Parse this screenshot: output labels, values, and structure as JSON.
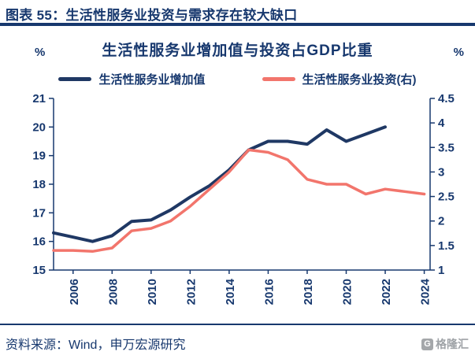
{
  "header": {
    "title": "图表 55：生活性服务业投资与需求存在较大缺口"
  },
  "chart_data": {
    "type": "line",
    "title": "生活性服务业增加值与投资占GDP比重",
    "x": [
      2005,
      2006,
      2007,
      2008,
      2009,
      2010,
      2011,
      2012,
      2013,
      2014,
      2015,
      2016,
      2017,
      2018,
      2019,
      2020,
      2021,
      2022,
      2023,
      2024
    ],
    "x_domain": [
      2005,
      2024.3
    ],
    "x_ticks": [
      2006,
      2008,
      2010,
      2012,
      2014,
      2016,
      2018,
      2020,
      2022,
      2024
    ],
    "grid": false,
    "legend_position": "top",
    "left_axis": {
      "unit": "%",
      "lim": [
        15,
        21
      ],
      "ticks": [
        15,
        16,
        17,
        18,
        19,
        20,
        21
      ]
    },
    "right_axis": {
      "unit": "%",
      "lim": [
        1,
        4.5
      ],
      "ticks": [
        1,
        1.5,
        2,
        2.5,
        3,
        3.5,
        4,
        4.5
      ]
    },
    "series": [
      {
        "name": "生活性服务业增加值",
        "axis": "left",
        "color": "#1F3864",
        "values": [
          16.3,
          16.15,
          16.0,
          16.2,
          16.7,
          16.75,
          17.1,
          17.55,
          17.95,
          18.5,
          19.2,
          19.5,
          19.5,
          19.4,
          19.9,
          19.5,
          19.75,
          20.0
        ]
      },
      {
        "name": "生活性服务业投资(右)",
        "axis": "right",
        "color": "#F2756C",
        "values": [
          1.4,
          1.4,
          1.38,
          1.45,
          1.8,
          1.85,
          2.0,
          2.3,
          2.65,
          3.0,
          3.45,
          3.4,
          3.25,
          2.85,
          2.75,
          2.75,
          2.55,
          2.65,
          2.6,
          2.55
        ]
      }
    ]
  },
  "footer": {
    "source": "资料来源：Wind，申万宏源研究",
    "logo_text": "格隆汇",
    "logo_mark": "G"
  },
  "colors": {
    "navy": "#17386E",
    "blue_line": "#1F3864",
    "red_line": "#F2756C"
  }
}
